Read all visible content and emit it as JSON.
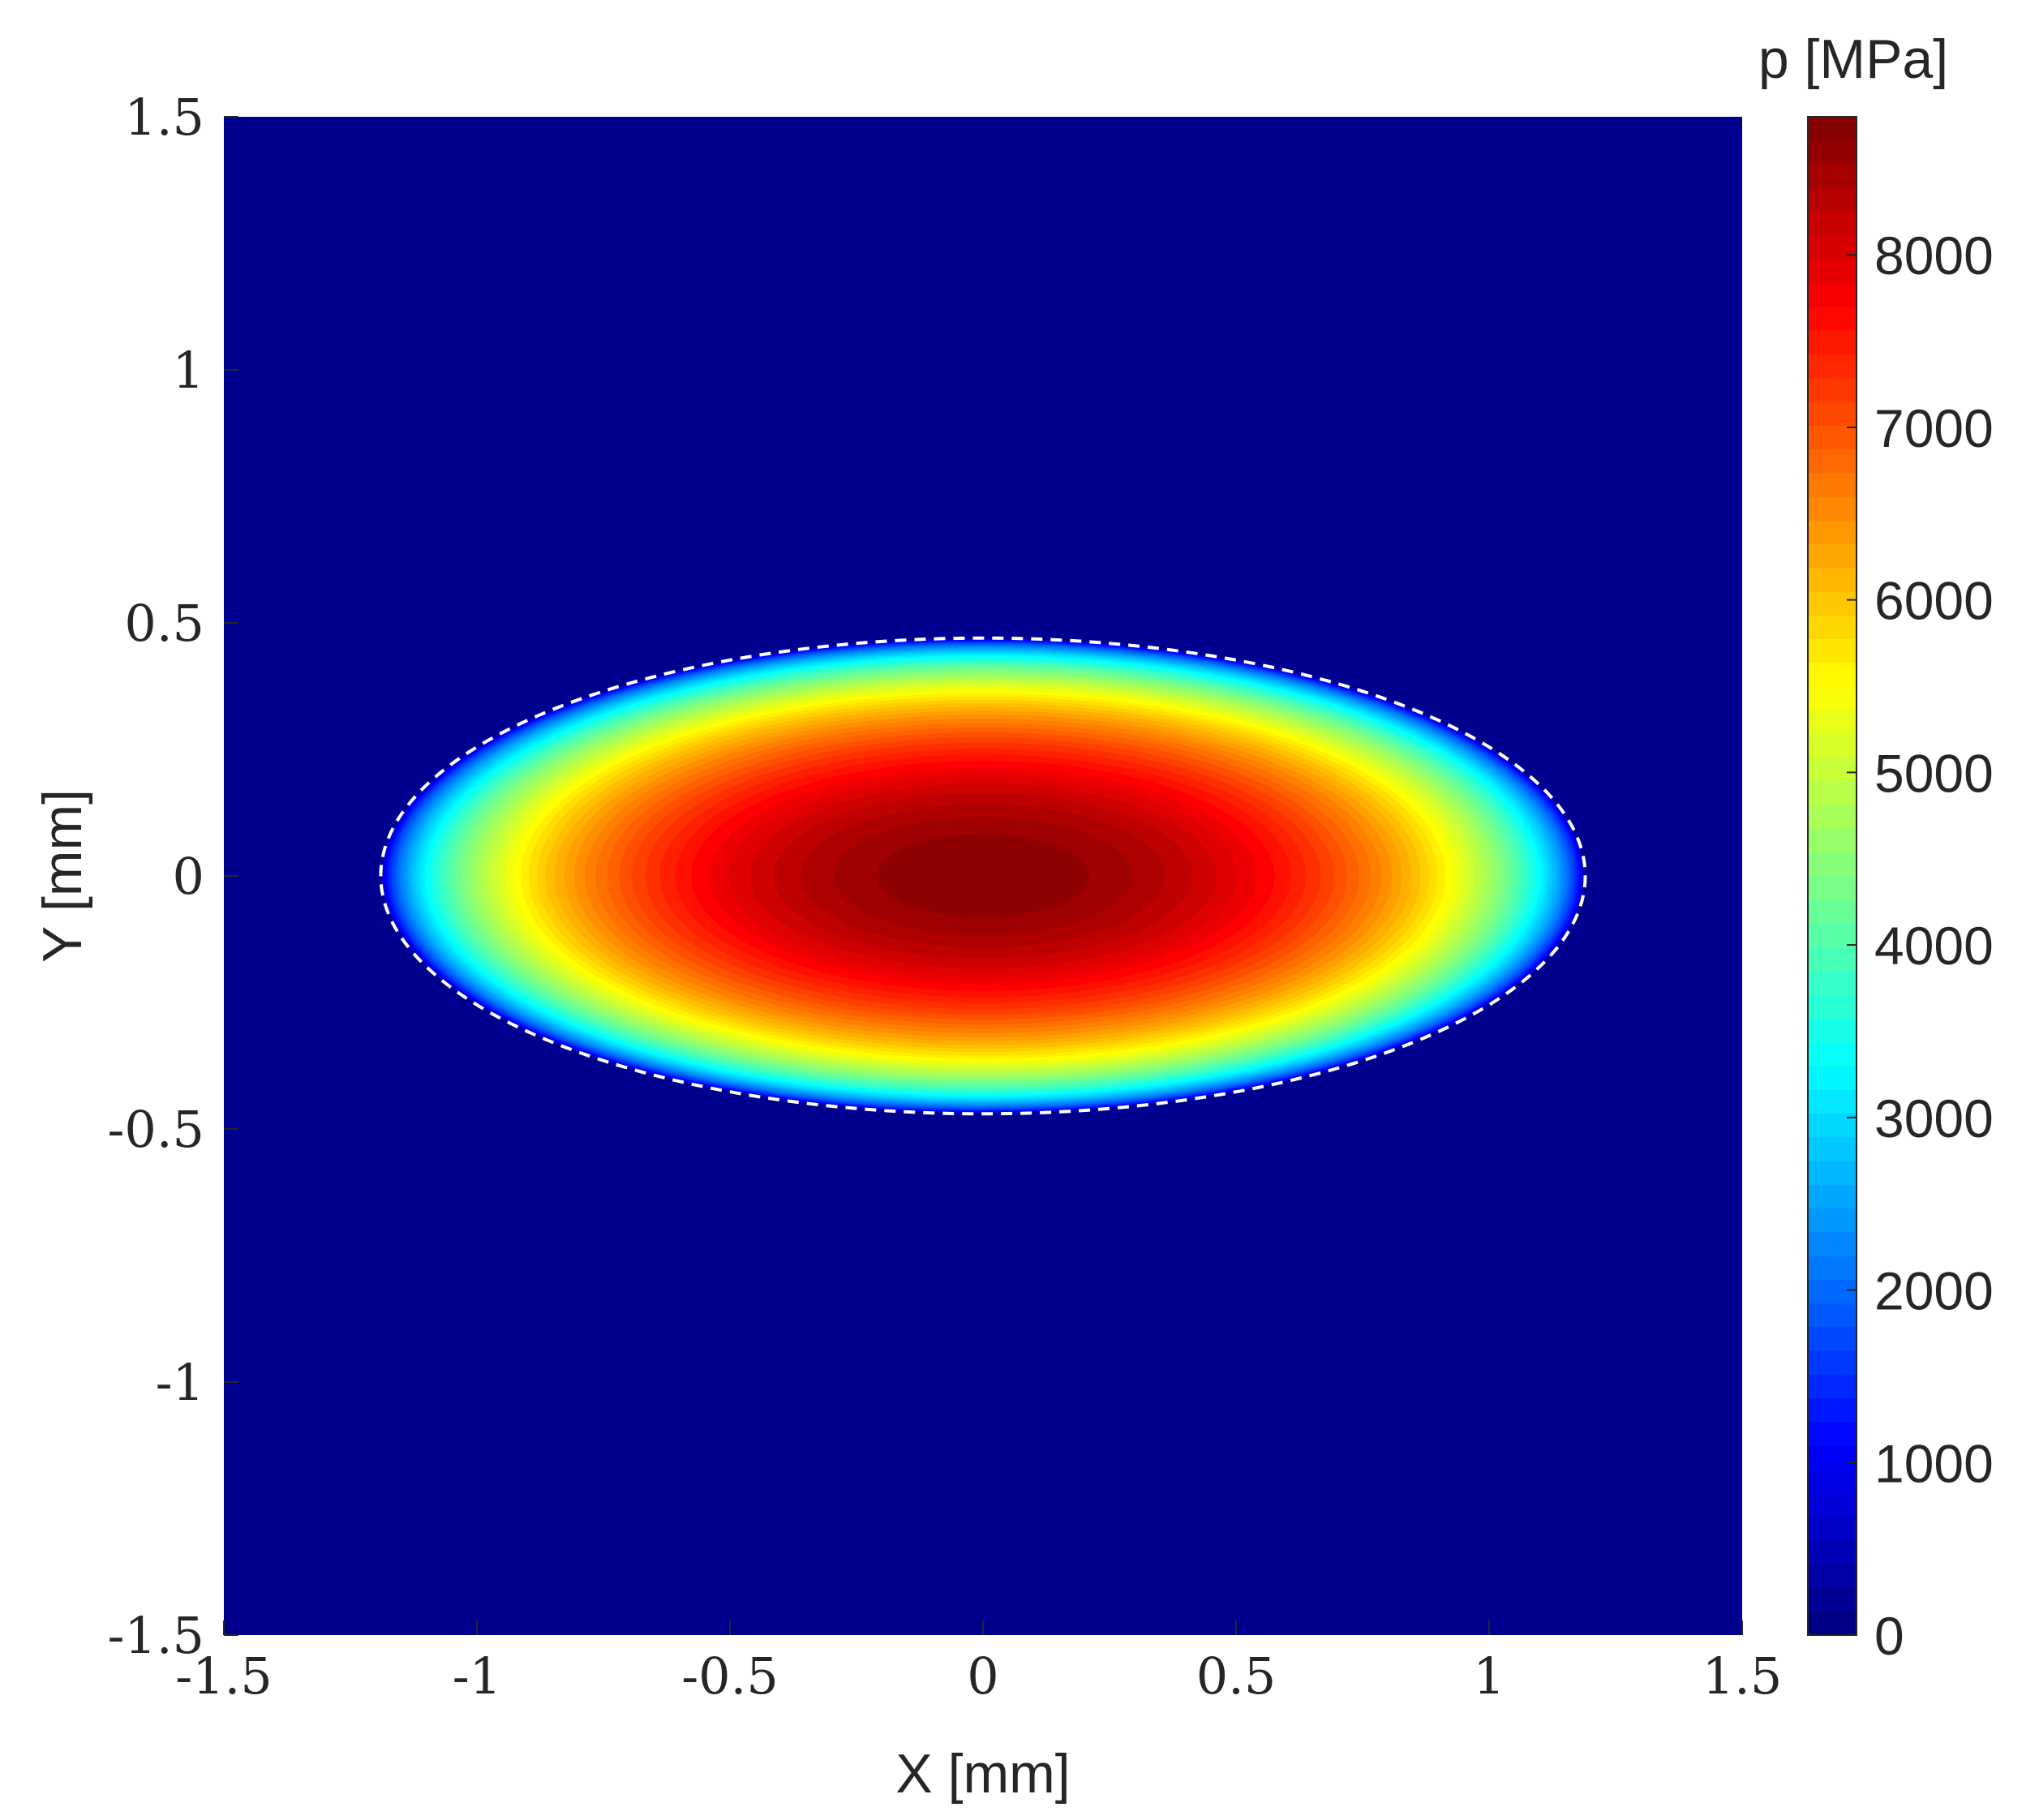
{
  "chart_data": {
    "type": "heatmap",
    "title": "",
    "xlabel": "X [mm]",
    "ylabel": "Y [mm]",
    "colorbar_label": "p [MPa]",
    "xlim": [
      -1.5,
      1.5
    ],
    "ylim": [
      -1.5,
      1.5
    ],
    "xticks": [
      -1.5,
      -1,
      -0.5,
      0,
      0.5,
      1,
      1.5
    ],
    "xtick_labels": [
      "-1.5",
      "-1",
      "-0.5",
      "0",
      "0.5",
      "1",
      "1.5"
    ],
    "yticks": [
      -1.5,
      -1,
      -0.5,
      0,
      0.5,
      1,
      1.5
    ],
    "ytick_labels": [
      "-1.5",
      "-1",
      "-0.5",
      "0",
      "0.5",
      "1",
      "1.5"
    ],
    "colorbar_range": [
      0,
      8800
    ],
    "colorbar_ticks": [
      0,
      1000,
      2000,
      3000,
      4000,
      5000,
      6000,
      7000,
      8000
    ],
    "colorbar_tick_labels": [
      "0",
      "1000",
      "2000",
      "3000",
      "4000",
      "5000",
      "6000",
      "7000",
      "8000"
    ],
    "colormap": "jet",
    "contour_levels": 64,
    "background_color": "#00008f",
    "contact_ellipse": {
      "center": [
        0,
        0
      ],
      "semi_axis_x": 1.19,
      "semi_axis_y": 0.47,
      "peak_pressure": 8800,
      "boundary_style": "white-dashed"
    },
    "grid": false,
    "legend": "none"
  }
}
